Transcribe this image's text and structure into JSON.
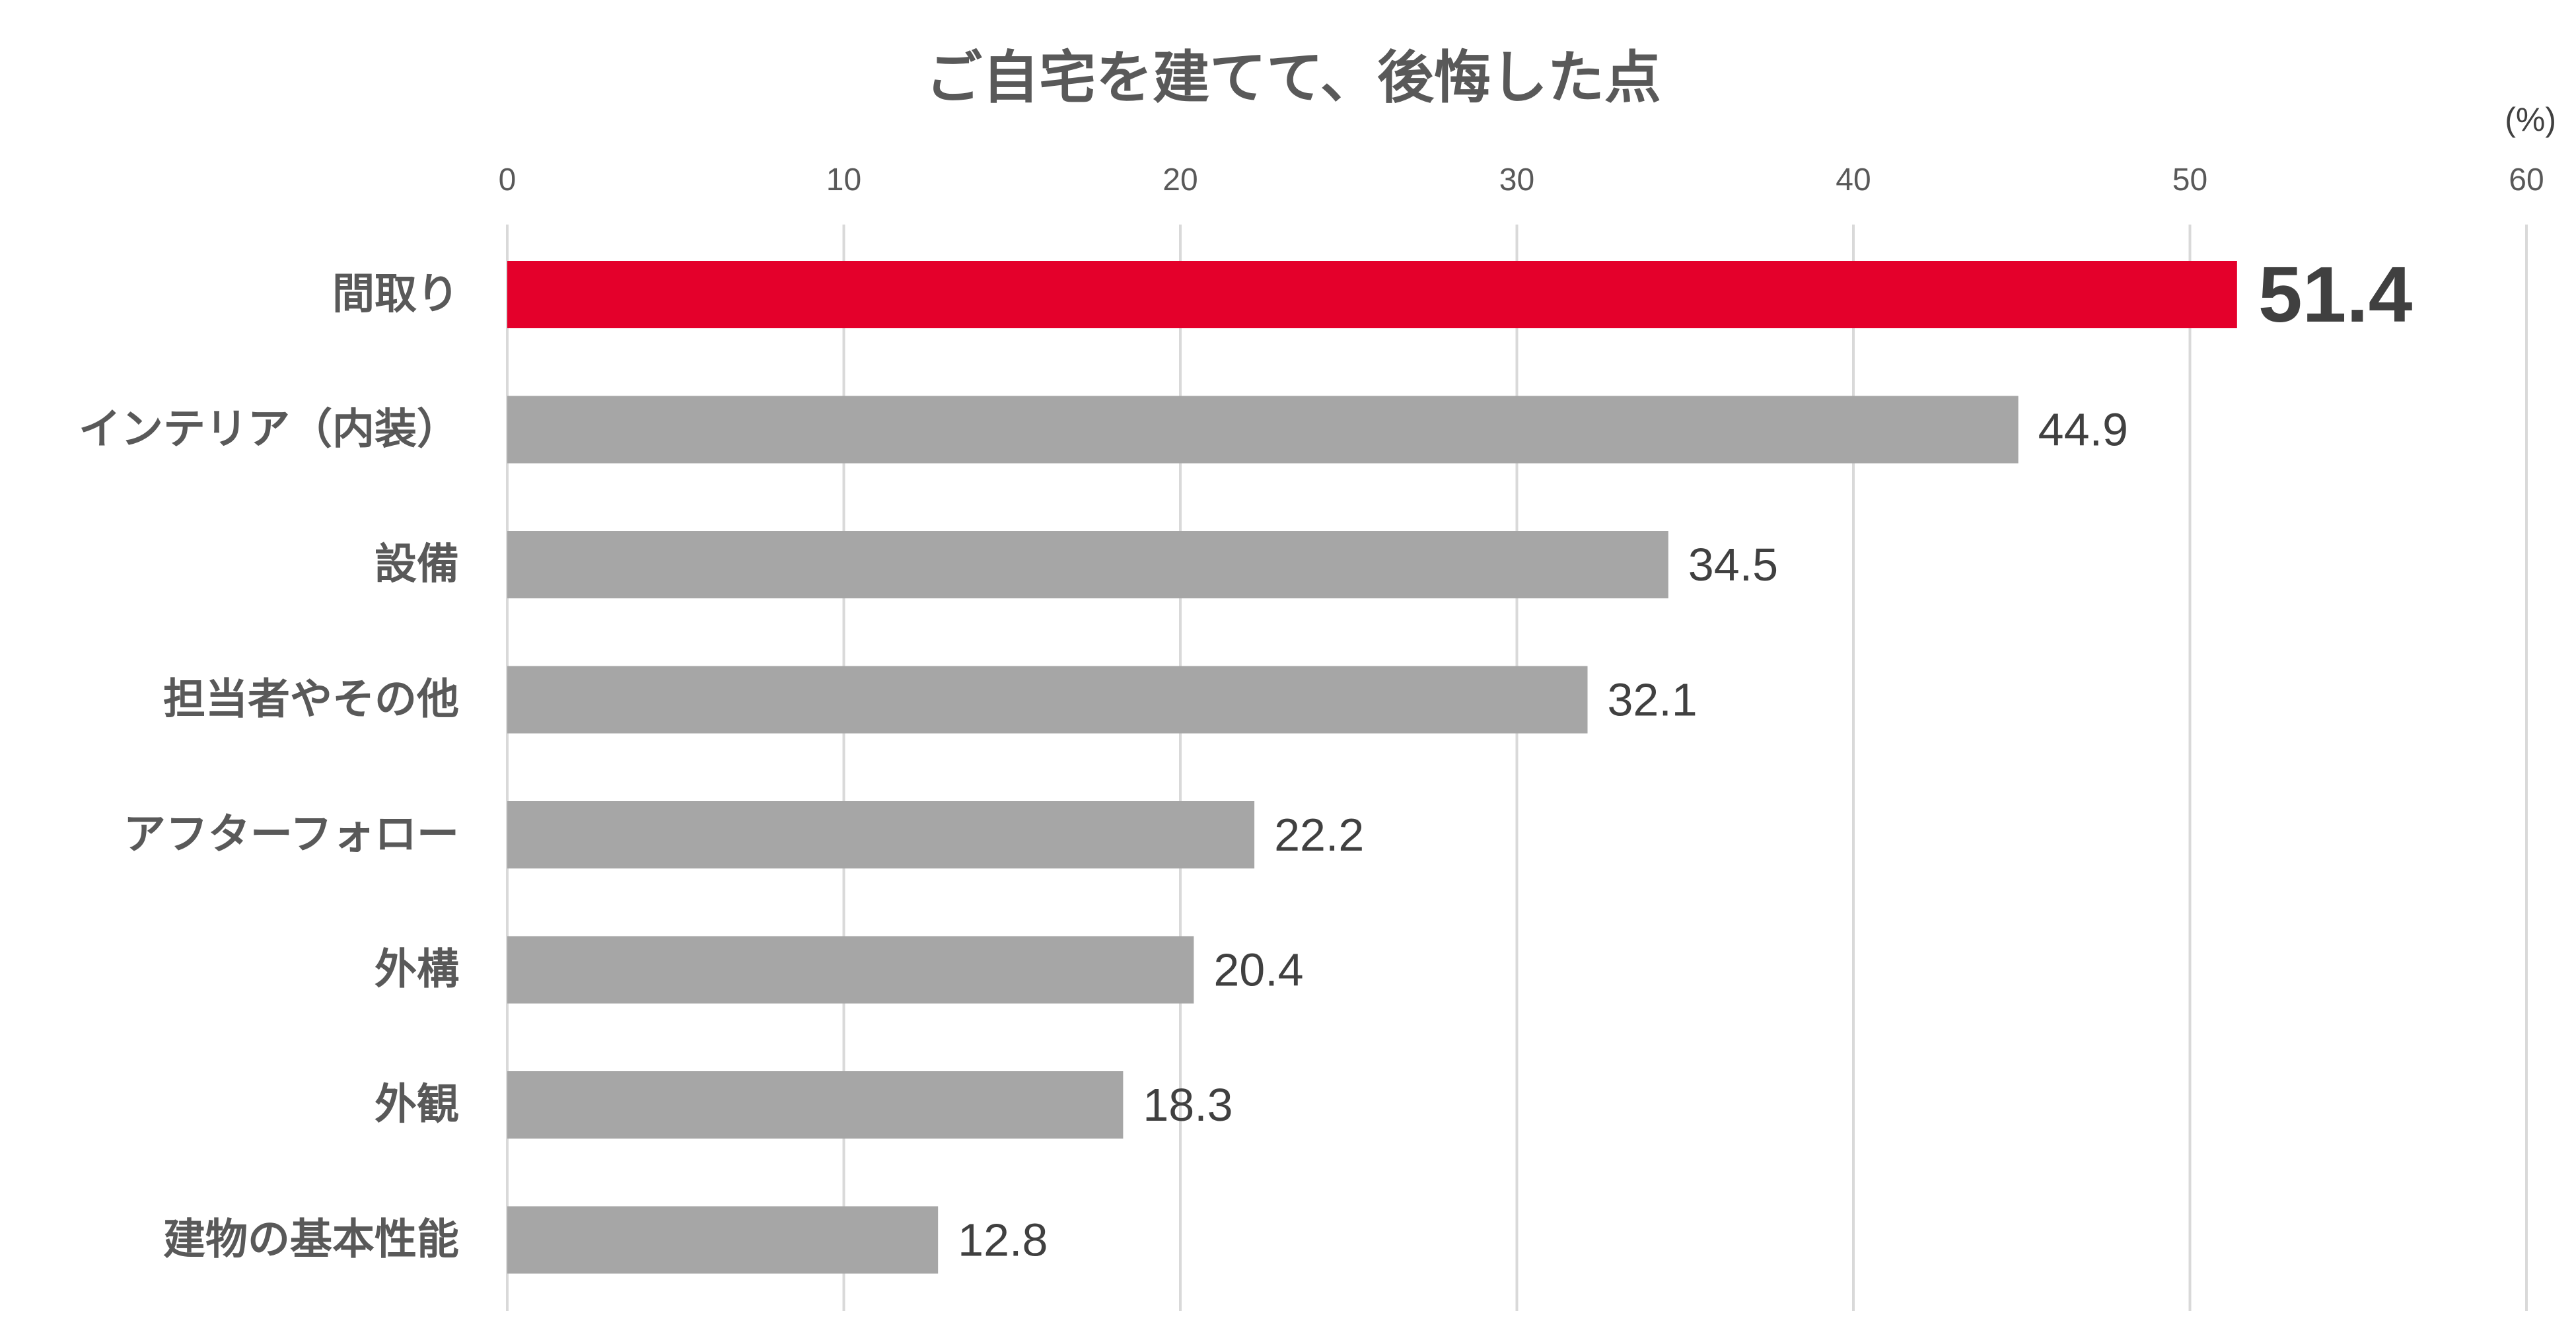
{
  "chart_data": {
    "type": "bar",
    "orientation": "horizontal",
    "title": "ご自宅を建てて、後悔した点",
    "unit": "(%)",
    "xlim": [
      0,
      60
    ],
    "ticks": [
      0,
      10,
      20,
      30,
      40,
      50,
      60
    ],
    "tick_labels": [
      "0",
      "10",
      "20",
      "30",
      "40",
      "50",
      "60"
    ],
    "grid": true,
    "categories": [
      "間取り",
      "インテリア（内装）",
      "設備",
      "担当者やその他",
      "アフターフォロー",
      "外構",
      "外観",
      "建物の基本性能"
    ],
    "values": [
      51.4,
      44.9,
      34.5,
      32.1,
      22.2,
      20.4,
      18.3,
      12.8
    ],
    "value_labels": [
      "51.4",
      "44.9",
      "34.5",
      "32.1",
      "22.2",
      "20.4",
      "18.3",
      "12.8"
    ],
    "highlight_index": 0,
    "colors": {
      "highlight": "#E4002B",
      "default": "#A6A6A6"
    }
  }
}
